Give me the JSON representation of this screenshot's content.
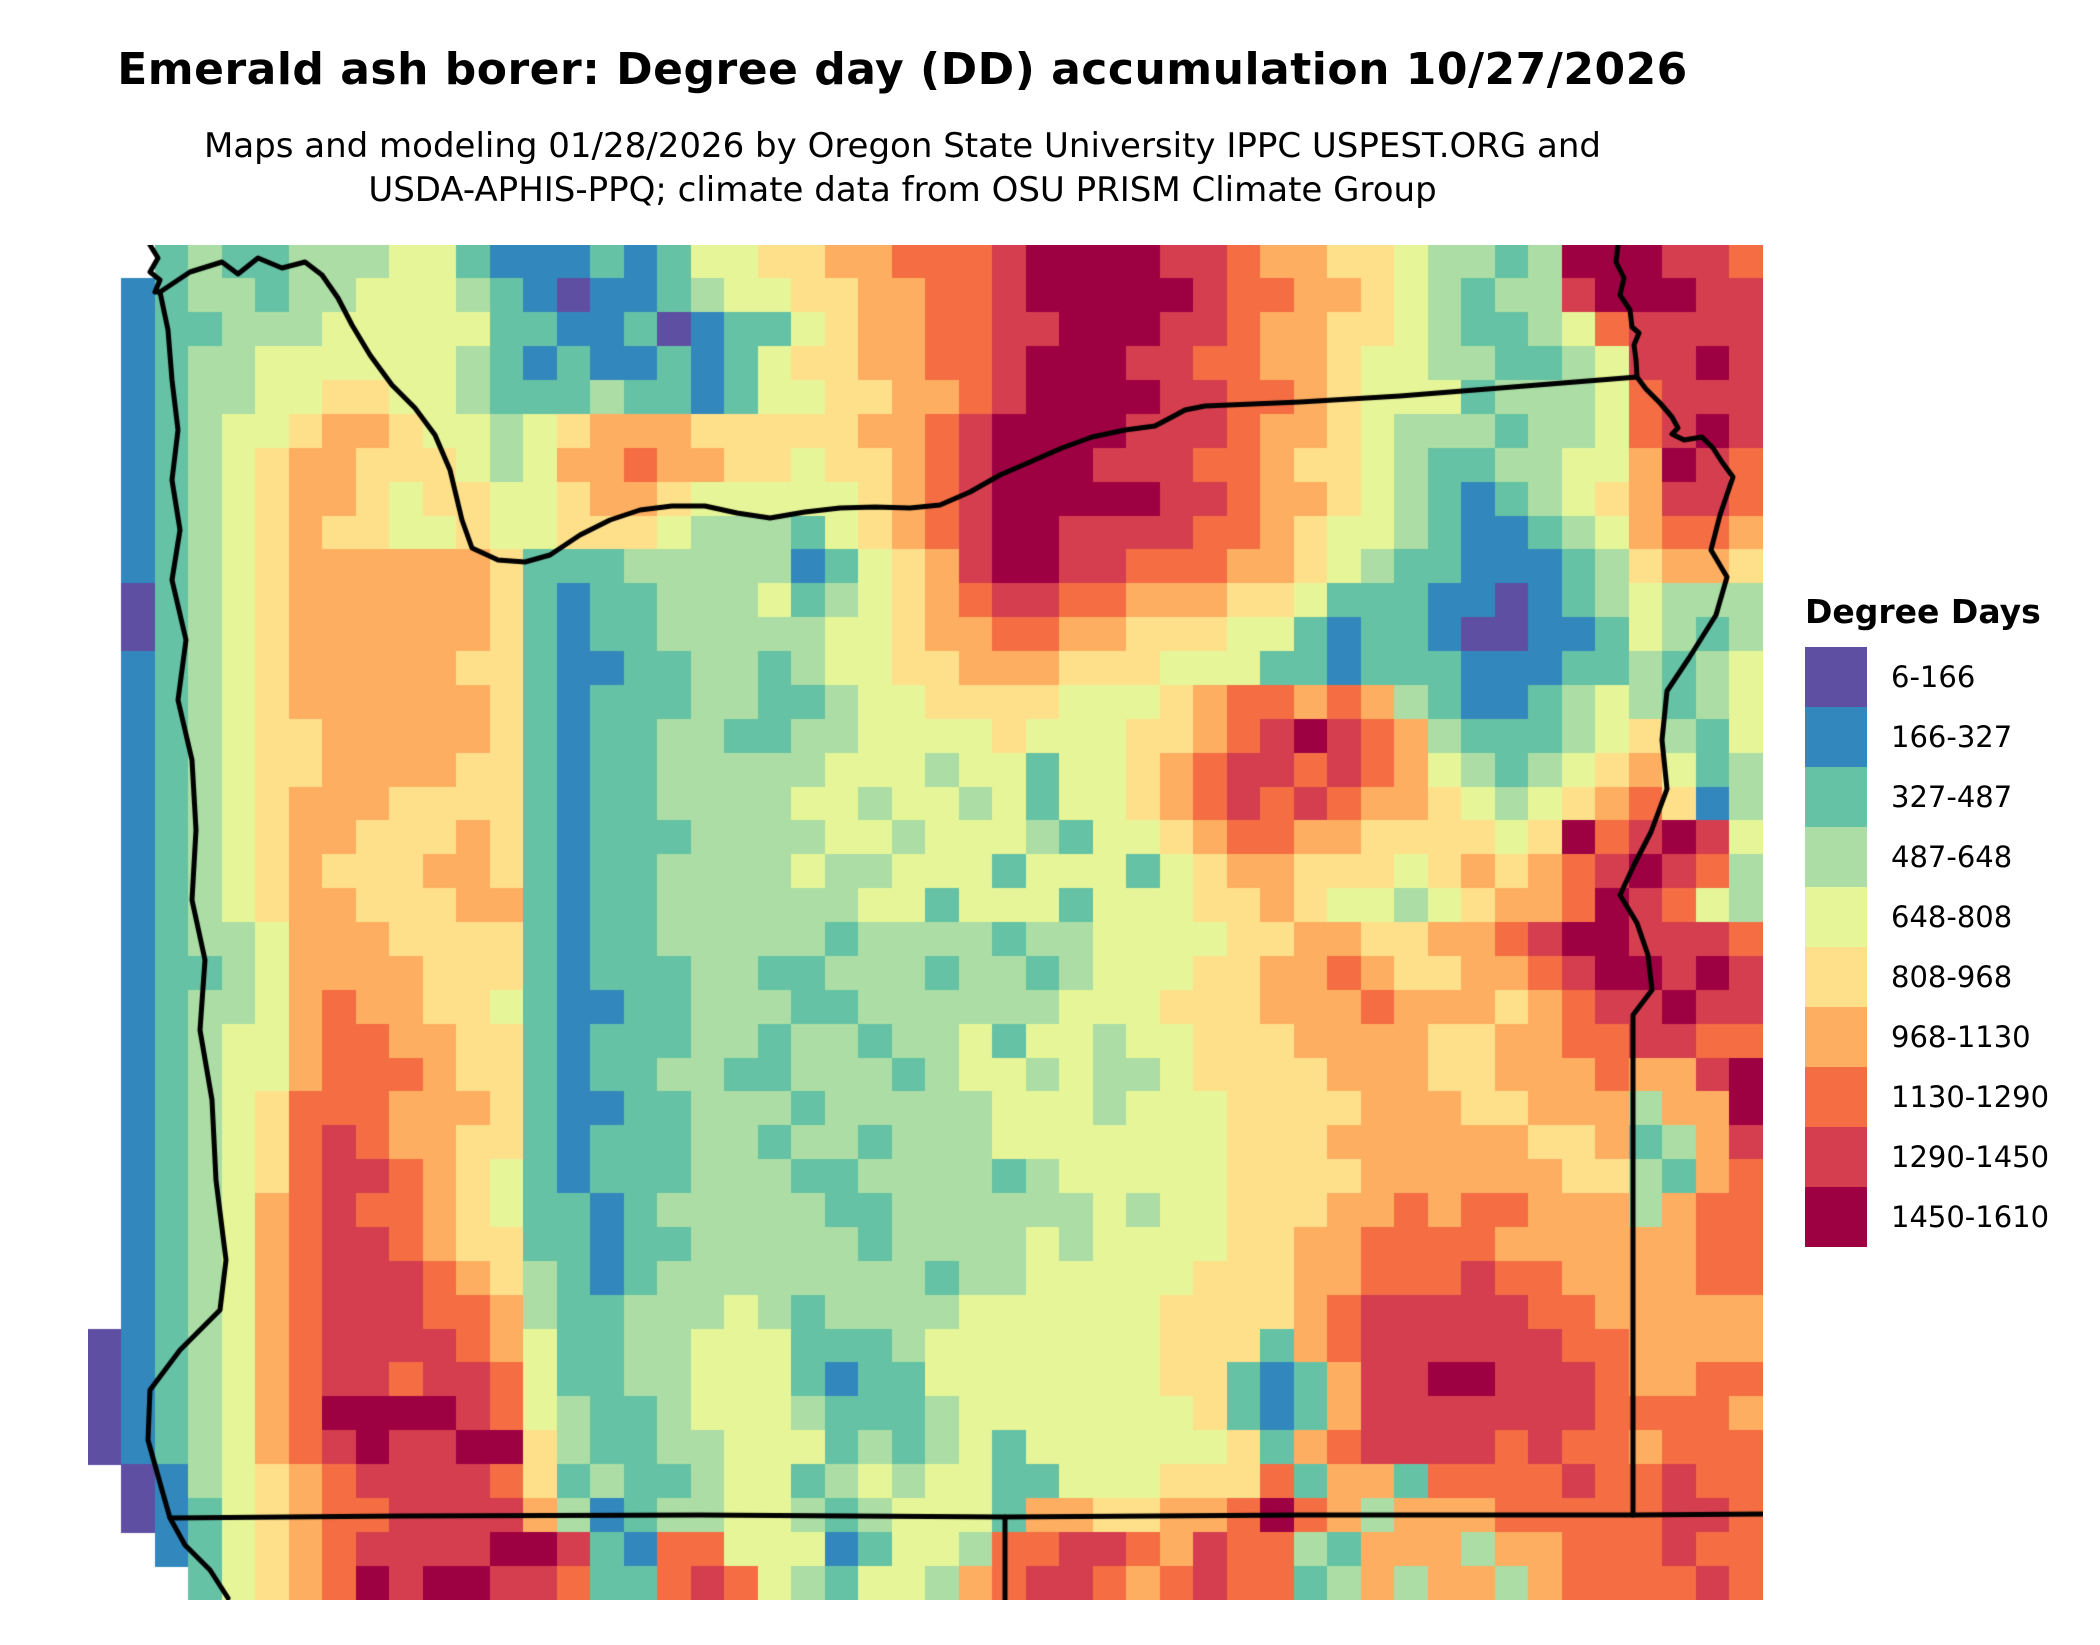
{
  "title": "Emerald ash borer: Degree day (DD) accumulation 10/27/2026",
  "subtitle_line1": "Maps and modeling 01/28/2026 by Oregon State University IPPC USPEST.ORG and",
  "subtitle_line2": "USDA-APHIS-PPQ; climate data from OSU PRISM Climate Group",
  "legend": {
    "title": "Degree Days",
    "classes": [
      {
        "label": "6-166",
        "color": "#5e4fa2"
      },
      {
        "label": "166-327",
        "color": "#3288bd"
      },
      {
        "label": "327-487",
        "color": "#66c2a5"
      },
      {
        "label": "487-648",
        "color": "#abdda4"
      },
      {
        "label": "648-808",
        "color": "#e6f598"
      },
      {
        "label": "808-968",
        "color": "#fee08b"
      },
      {
        "label": "968-1130",
        "color": "#fdae61"
      },
      {
        "label": "1130-1290",
        "color": "#f46d43"
      },
      {
        "label": "1290-1450",
        "color": "#d53e4f"
      },
      {
        "label": "1450-1610",
        "color": "#9e0142"
      }
    ]
  },
  "map": {
    "region": "Oregon and surrounding states",
    "palette": [
      "#5e4fa2",
      "#3288bd",
      "#66c2a5",
      "#abdda4",
      "#e6f598",
      "#fee08b",
      "#fdae61",
      "#f46d43",
      "#d53e4f",
      "#9e0142"
    ],
    "no_data_char": ".",
    "grid_cols": 50,
    "grid_rows": 40,
    "grid": [
      "..232233344211121244556677789999887665543323999887",
      ".1233233444321011234455667789999987766543233899988",
      ".1223334444422112012245667788999887665543223478888",
      ".1233444444321211212455667789998877665443322348898",
      ".1233445544322232212445566789999887765444233347888",
      ".1234456654434566655555667899998887665433323347898",
      ".1234566555434667665545567899988877655432233446987",
      ".1234566545544566544444567899999887665432123456887",
      ".1234565544544555433324567899888877654432112346776",
      ".1234566666652223333312456899887776654322111235665",
      ".0234566666652122333423456788776665542221101234333",
      ".0234566666652122333334456677665554421221001124323",
      ".1234566666552112233234455666555444221222111223234",
      ".1234566666652122233223445555444567767632112343234",
      ".1234556666652122332233444454445567898763222345324",
      ".1234556666552122333334443442445678878764323456423",
      ".1234566655552122333344344342445678787665434567513",
      ".1234566555652122233334434443244567766555545978984",
      ".1234565556652122333343344424442456655545656789873",
      ".1234566555662122333333442444244455654434566798743",
      ".1233466655552122333332333323344445566556678998887",
      ".1223466665552122233223332332344455667655667899898",
      ".1233467665542112233322333333444555666766656788988",
      ".1234467766552122233233233424434455566665566778877",
      ".1234467776552122332233323443433455556665566676689",
      ".1234577766652112233323333344434445555666556663669",
      ".1234578766552122233233233344444445556666665562368",
      ".1234578876542122233322333323444445555666666553267",
      ".1234678776542212333332233333343445556676776663677",
      ".1234678876552212233333233334344445566777766666677",
      ".1234678887653212333333332334444455566777877666677",
      ".1234678887763223334323333444444555567888887766666",
      "01234678888764223344422234444444555267888888776666",
      "01234678878874223344421224444444552126889988876677",
      "01234679999874322344432223444444452126888888877776",
      "01234678988995322334442323424444445267888878776777",
      ".0134567888875232234423434422444555726627777877877",
      ".0124567788886312334432344426655667976366677777887",
      "..124567888899821774441244377887687732666366777877",
      "...24567989988722787432443678876787723636636777787"
    ],
    "boundaries": {
      "coastline": [
        [
          62,
          0
        ],
        [
          70,
          13
        ],
        [
          62,
          27
        ],
        [
          72,
          35
        ],
        [
          67,
          47
        ],
        [
          72,
          47
        ],
        [
          80,
          85
        ],
        [
          84,
          135
        ],
        [
          90,
          185
        ],
        [
          84,
          235
        ],
        [
          92,
          285
        ],
        [
          84,
          335
        ],
        [
          98,
          395
        ],
        [
          90,
          455
        ],
        [
          104,
          515
        ],
        [
          108,
          585
        ],
        [
          104,
          655
        ],
        [
          117,
          715
        ],
        [
          112,
          785
        ],
        [
          124,
          855
        ],
        [
          128,
          935
        ],
        [
          138,
          1015
        ],
        [
          132,
          1065
        ],
        [
          92,
          1105
        ],
        [
          62,
          1145
        ],
        [
          60,
          1195
        ],
        [
          74,
          1245
        ],
        [
          82,
          1273
        ],
        [
          97,
          1300
        ],
        [
          122,
          1325
        ],
        [
          140,
          1353
        ]
      ],
      "columbia_river_north_border": [
        [
          72,
          47
        ],
        [
          102,
          27
        ],
        [
          134,
          17
        ],
        [
          150,
          29
        ],
        [
          170,
          13
        ],
        [
          194,
          23
        ],
        [
          217,
          17
        ],
        [
          234,
          30
        ],
        [
          250,
          53
        ],
        [
          264,
          80
        ],
        [
          282,
          110
        ],
        [
          304,
          140
        ],
        [
          327,
          163
        ],
        [
          347,
          190
        ],
        [
          362,
          225
        ],
        [
          374,
          275
        ],
        [
          384,
          303
        ],
        [
          410,
          315
        ],
        [
          437,
          317
        ],
        [
          462,
          310
        ],
        [
          492,
          290
        ],
        [
          522,
          275
        ],
        [
          552,
          265
        ],
        [
          584,
          261
        ],
        [
          617,
          261
        ],
        [
          649,
          268
        ],
        [
          682,
          273
        ],
        [
          717,
          267
        ],
        [
          752,
          263
        ],
        [
          787,
          262
        ],
        [
          822,
          263
        ],
        [
          852,
          260
        ],
        [
          882,
          247
        ],
        [
          912,
          230
        ],
        [
          942,
          217
        ],
        [
          974,
          203
        ],
        [
          1004,
          192
        ],
        [
          1037,
          185
        ],
        [
          1067,
          181
        ],
        [
          1084,
          172
        ],
        [
          1097,
          165
        ],
        [
          1117,
          161
        ],
        [
          1212,
          157
        ],
        [
          1312,
          151
        ],
        [
          1412,
          143
        ],
        [
          1512,
          135
        ],
        [
          1549,
          132
        ]
      ],
      "snake_river_east_border": [
        [
          1530,
          0
        ],
        [
          1528,
          17
        ],
        [
          1536,
          33
        ],
        [
          1532,
          50
        ],
        [
          1542,
          65
        ],
        [
          1544,
          82
        ],
        [
          1551,
          88
        ],
        [
          1546,
          100
        ],
        [
          1548,
          115
        ],
        [
          1549,
          132
        ],
        [
          1558,
          144
        ],
        [
          1572,
          158
        ],
        [
          1584,
          172
        ],
        [
          1590,
          183
        ],
        [
          1584,
          189
        ],
        [
          1596,
          195
        ],
        [
          1614,
          192
        ],
        [
          1625,
          203
        ],
        [
          1634,
          217
        ],
        [
          1645,
          232
        ],
        [
          1632,
          270
        ],
        [
          1623,
          305
        ],
        [
          1639,
          332
        ],
        [
          1628,
          370
        ],
        [
          1601,
          413
        ],
        [
          1579,
          446
        ],
        [
          1574,
          495
        ],
        [
          1579,
          544
        ],
        [
          1563,
          587
        ],
        [
          1546,
          620
        ],
        [
          1532,
          650
        ],
        [
          1549,
          678
        ],
        [
          1560,
          710
        ],
        [
          1564,
          745
        ],
        [
          1545,
          770
        ],
        [
          1545,
          1270
        ]
      ],
      "south_border": [
        [
          82,
          1273
        ],
        [
          312,
          1271
        ],
        [
          612,
          1270
        ],
        [
          917,
          1272
        ],
        [
          1212,
          1270
        ],
        [
          1545,
          1270
        ],
        [
          1675,
          1269
        ]
      ],
      "ca_nv_border": [
        [
          917,
          1272
        ],
        [
          917,
          1355
        ]
      ]
    }
  }
}
